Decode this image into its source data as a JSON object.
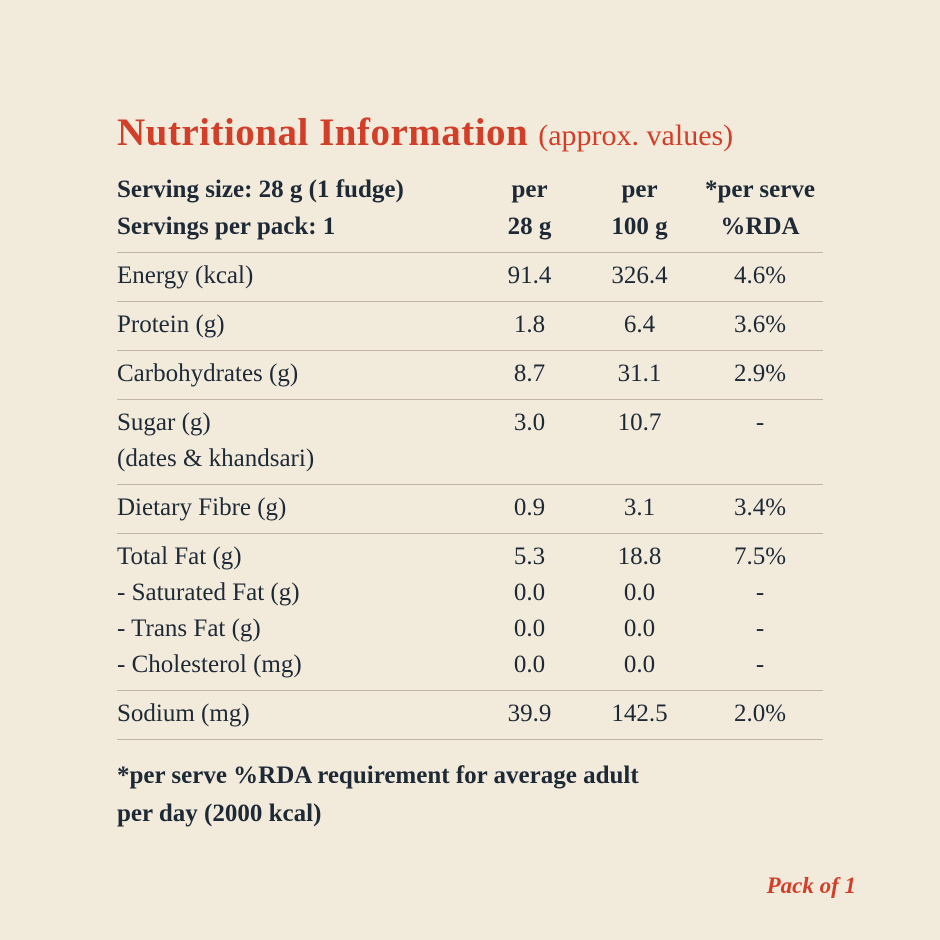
{
  "theme": {
    "background": "#f2ebdc",
    "accent_red": "#d23e28",
    "text_dark": "#1e2936",
    "divider": "#c2b3a2"
  },
  "title": {
    "main": "Nutritional Information",
    "suffix": "(approx. values)"
  },
  "table": {
    "header": {
      "serving_line1": "Serving size: 28 g (1 fudge)",
      "serving_line2": "Servings per pack: 1",
      "col1_line1": "per",
      "col1_line2": "28 g",
      "col2_line1": "per",
      "col2_line2": "100 g",
      "col3_line1": "*per serve",
      "col3_line2": "%RDA"
    },
    "rows": [
      {
        "cells": [
          {
            "label": "Energy (kcal)",
            "c1": "91.4",
            "c2": "326.4",
            "c3": "4.6%"
          }
        ]
      },
      {
        "cells": [
          {
            "label": "Protein (g)",
            "c1": "1.8",
            "c2": "6.4",
            "c3": "3.6%"
          }
        ]
      },
      {
        "cells": [
          {
            "label": "Carbohydrates (g)",
            "c1": "8.7",
            "c2": "31.1",
            "c3": "2.9%"
          }
        ]
      },
      {
        "cells": [
          {
            "label": "Sugar (g)",
            "c1": "3.0",
            "c2": "10.7",
            "c3": "-"
          },
          {
            "label": "(dates & khandsari)",
            "c1": "",
            "c2": "",
            "c3": ""
          }
        ]
      },
      {
        "cells": [
          {
            "label": "Dietary Fibre (g)",
            "c1": "0.9",
            "c2": "3.1",
            "c3": "3.4%"
          }
        ]
      },
      {
        "cells": [
          {
            "label": "Total Fat (g)",
            "c1": "5.3",
            "c2": "18.8",
            "c3": "7.5%"
          },
          {
            "label": "- Saturated Fat (g)",
            "c1": "0.0",
            "c2": "0.0",
            "c3": "-"
          },
          {
            "label": "- Trans Fat (g)",
            "c1": "0.0",
            "c2": "0.0",
            "c3": "-"
          },
          {
            "label": "- Cholesterol (mg)",
            "c1": "0.0",
            "c2": "0.0",
            "c3": "-"
          }
        ]
      },
      {
        "cells": [
          {
            "label": "Sodium (mg)",
            "c1": "39.9",
            "c2": "142.5",
            "c3": "2.0%"
          }
        ]
      }
    ]
  },
  "footnote": {
    "line1": "*per serve %RDA requirement for average adult",
    "line2": "per day (2000 kcal)"
  },
  "pack_label": "Pack of 1"
}
